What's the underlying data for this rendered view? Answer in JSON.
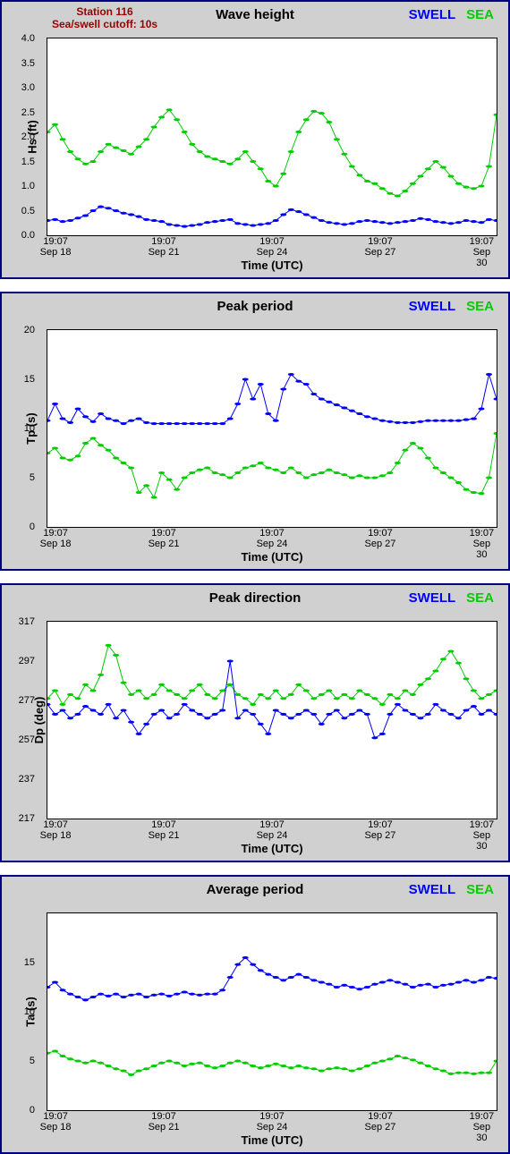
{
  "global": {
    "station_title": "Station 116",
    "cutoff_text": "Sea/swell cutoff: 10s",
    "station_color": "#990000",
    "swell_label": "SWELL",
    "swell_color": "#0000ff",
    "sea_label": "SEA",
    "sea_color": "#00cc00",
    "x_axis_label": "Time (UTC)",
    "x_ticks": [
      {
        "pos": 0.02,
        "time": "19:07",
        "date": "Sep 18"
      },
      {
        "pos": 0.26,
        "time": "19:07",
        "date": "Sep 21"
      },
      {
        "pos": 0.5,
        "time": "19:07",
        "date": "Sep 24"
      },
      {
        "pos": 0.74,
        "time": "19:07",
        "date": "Sep 27"
      },
      {
        "pos": 0.965,
        "time": "19:07",
        "date": "Sep 30"
      }
    ],
    "panel_bg": "#d0d0d0",
    "panel_border": "#000080",
    "plot_bg": "#ffffff",
    "marker_radius": 1.5
  },
  "charts": [
    {
      "title": "Wave height",
      "show_station": true,
      "y_label": "Hs (ft)",
      "y_min": 0,
      "y_max": 4.0,
      "y_ticks": [
        0.0,
        0.5,
        1.0,
        1.5,
        2.0,
        2.5,
        3.0,
        3.5,
        4.0
      ],
      "y_tick_fmt": "fixed1",
      "series": {
        "swell": [
          0.3,
          0.32,
          0.28,
          0.3,
          0.35,
          0.4,
          0.5,
          0.58,
          0.55,
          0.5,
          0.45,
          0.42,
          0.38,
          0.32,
          0.3,
          0.28,
          0.22,
          0.2,
          0.18,
          0.2,
          0.22,
          0.26,
          0.28,
          0.3,
          0.32,
          0.24,
          0.22,
          0.2,
          0.22,
          0.24,
          0.3,
          0.42,
          0.52,
          0.48,
          0.42,
          0.36,
          0.3,
          0.26,
          0.24,
          0.22,
          0.24,
          0.28,
          0.3,
          0.28,
          0.26,
          0.24,
          0.26,
          0.28,
          0.3,
          0.34,
          0.32,
          0.28,
          0.26,
          0.24,
          0.26,
          0.3,
          0.28,
          0.26,
          0.32,
          0.3
        ],
        "sea": [
          2.1,
          2.25,
          1.95,
          1.7,
          1.55,
          1.45,
          1.5,
          1.7,
          1.85,
          1.78,
          1.72,
          1.65,
          1.8,
          1.95,
          2.2,
          2.4,
          2.55,
          2.35,
          2.1,
          1.85,
          1.7,
          1.6,
          1.55,
          1.5,
          1.45,
          1.55,
          1.7,
          1.5,
          1.35,
          1.1,
          1.0,
          1.25,
          1.7,
          2.1,
          2.35,
          2.52,
          2.48,
          2.3,
          1.95,
          1.65,
          1.4,
          1.22,
          1.1,
          1.05,
          0.95,
          0.85,
          0.8,
          0.9,
          1.05,
          1.2,
          1.35,
          1.5,
          1.38,
          1.2,
          1.05,
          0.98,
          0.95,
          1.0,
          1.4,
          2.45
        ]
      }
    },
    {
      "title": "Peak period",
      "show_station": false,
      "y_label": "Tp (s)",
      "y_min": 0,
      "y_max": 20,
      "y_ticks": [
        0,
        5,
        10,
        15,
        20
      ],
      "y_tick_fmt": "int",
      "series": {
        "swell": [
          10.8,
          12.5,
          11.0,
          10.6,
          12.0,
          11.2,
          10.7,
          11.5,
          11.0,
          10.8,
          10.5,
          10.8,
          11.0,
          10.6,
          10.5,
          10.5,
          10.5,
          10.5,
          10.5,
          10.5,
          10.5,
          10.5,
          10.5,
          10.5,
          11.0,
          12.5,
          15.0,
          13.0,
          14.5,
          11.5,
          10.8,
          14.0,
          15.5,
          14.8,
          14.5,
          13.5,
          13.0,
          12.7,
          12.4,
          12.1,
          11.8,
          11.5,
          11.2,
          11.0,
          10.8,
          10.7,
          10.6,
          10.6,
          10.6,
          10.7,
          10.8,
          10.8,
          10.8,
          10.8,
          10.8,
          10.9,
          11.0,
          12.0,
          15.5,
          13.0
        ],
        "sea": [
          7.5,
          8.0,
          7.0,
          6.8,
          7.2,
          8.5,
          9.0,
          8.3,
          7.8,
          7.0,
          6.5,
          6.0,
          3.5,
          4.2,
          3.0,
          5.5,
          4.8,
          3.8,
          5.0,
          5.5,
          5.8,
          6.0,
          5.5,
          5.3,
          5.0,
          5.5,
          6.0,
          6.2,
          6.5,
          6.0,
          5.8,
          5.5,
          6.0,
          5.5,
          5.0,
          5.3,
          5.5,
          5.8,
          5.5,
          5.3,
          5.0,
          5.2,
          5.0,
          5.0,
          5.2,
          5.5,
          6.5,
          7.8,
          8.5,
          8.0,
          7.0,
          6.0,
          5.5,
          5.0,
          4.5,
          3.8,
          3.5,
          3.4,
          5.0,
          9.5
        ]
      }
    },
    {
      "title": "Peak direction",
      "show_station": false,
      "y_label": "Dp (deg)",
      "y_min": 217,
      "y_max": 317,
      "y_ticks": [
        217,
        237,
        257,
        277,
        297,
        317
      ],
      "y_tick_fmt": "int",
      "series": {
        "swell": [
          275,
          270,
          272,
          268,
          270,
          274,
          272,
          270,
          275,
          268,
          272,
          266,
          260,
          265,
          270,
          272,
          268,
          270,
          275,
          272,
          270,
          268,
          270,
          272,
          297,
          268,
          272,
          270,
          265,
          260,
          272,
          270,
          268,
          270,
          272,
          270,
          265,
          270,
          272,
          268,
          270,
          272,
          270,
          258,
          260,
          270,
          275,
          272,
          270,
          268,
          270,
          275,
          272,
          270,
          268,
          272,
          274,
          270,
          272,
          270
        ],
        "sea": [
          278,
          282,
          275,
          280,
          278,
          285,
          282,
          290,
          305,
          300,
          286,
          280,
          282,
          278,
          280,
          285,
          282,
          280,
          278,
          282,
          285,
          280,
          278,
          282,
          285,
          280,
          278,
          275,
          280,
          278,
          282,
          278,
          280,
          285,
          282,
          278,
          280,
          282,
          278,
          280,
          278,
          282,
          280,
          278,
          275,
          280,
          278,
          282,
          280,
          285,
          288,
          292,
          298,
          302,
          296,
          288,
          282,
          278,
          280,
          282
        ]
      }
    },
    {
      "title": "Average period",
      "show_station": false,
      "y_label": "Ta (s)",
      "y_min": 0,
      "y_max": 20,
      "y_ticks": [
        0,
        5,
        10,
        15
      ],
      "y_tick_fmt": "int",
      "series": {
        "swell": [
          12.5,
          13.0,
          12.2,
          11.8,
          11.5,
          11.2,
          11.5,
          11.8,
          11.6,
          11.8,
          11.5,
          11.7,
          11.8,
          11.5,
          11.7,
          11.8,
          11.6,
          11.8,
          12.0,
          11.8,
          11.7,
          11.8,
          11.8,
          12.2,
          13.5,
          14.8,
          15.5,
          14.8,
          14.2,
          13.8,
          13.5,
          13.2,
          13.5,
          13.8,
          13.5,
          13.2,
          13.0,
          12.8,
          12.5,
          12.7,
          12.5,
          12.3,
          12.5,
          12.8,
          13.0,
          13.2,
          13.0,
          12.8,
          12.5,
          12.7,
          12.8,
          12.5,
          12.7,
          12.8,
          13.0,
          13.2,
          13.0,
          13.2,
          13.5,
          13.4
        ],
        "sea": [
          5.8,
          6.0,
          5.5,
          5.2,
          5.0,
          4.8,
          5.0,
          4.8,
          4.5,
          4.2,
          4.0,
          3.6,
          4.0,
          4.2,
          4.5,
          4.8,
          5.0,
          4.8,
          4.5,
          4.7,
          4.8,
          4.5,
          4.3,
          4.5,
          4.8,
          5.0,
          4.8,
          4.5,
          4.3,
          4.5,
          4.7,
          4.5,
          4.3,
          4.5,
          4.3,
          4.2,
          4.0,
          4.2,
          4.3,
          4.2,
          4.0,
          4.2,
          4.5,
          4.8,
          5.0,
          5.2,
          5.5,
          5.3,
          5.1,
          4.8,
          4.5,
          4.2,
          4.0,
          3.7,
          3.8,
          3.8,
          3.7,
          3.8,
          3.8,
          5.0
        ]
      }
    }
  ]
}
